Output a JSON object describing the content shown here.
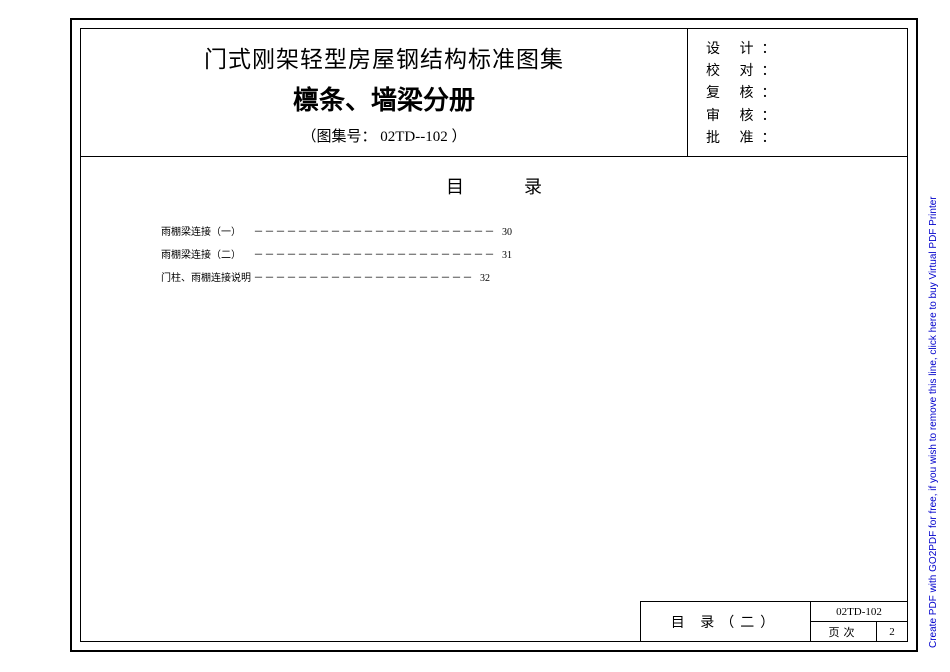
{
  "header": {
    "title_main": "门式刚架轻型房屋钢结构标准图集",
    "title_sub": "檩条、墙梁分册",
    "code_prefix": "（图集号：",
    "code_value": "02TD--102",
    "code_suffix": "）",
    "approvals": [
      "设 计：",
      "校 对：",
      "复 核：",
      "审 核：",
      "批 准："
    ]
  },
  "content": {
    "toc_heading": "目录",
    "items": [
      {
        "label": "雨棚梁连接（一）",
        "leader": "－－－－－－－－－－－－－－－－－－－－－－",
        "page": "30"
      },
      {
        "label": "雨棚梁连接（二）",
        "leader": "－－－－－－－－－－－－－－－－－－－－－－",
        "page": "31"
      },
      {
        "label": "门柱、雨棚连接说明",
        "leader": "－－－－－－－－－－－－－－－－－－－－",
        "page": "32"
      }
    ]
  },
  "footer": {
    "section_title": "目 录（二）",
    "code": "02TD-102",
    "page_label": "页次",
    "page_num": "2"
  },
  "sidebar": {
    "text": "Create PDF with GO2PDF for free, if you wish to remove this line, click here to buy Virtual PDF Printer",
    "color": "#0000cc"
  },
  "colors": {
    "border": "#000000",
    "background": "#ffffff",
    "text": "#000000"
  }
}
